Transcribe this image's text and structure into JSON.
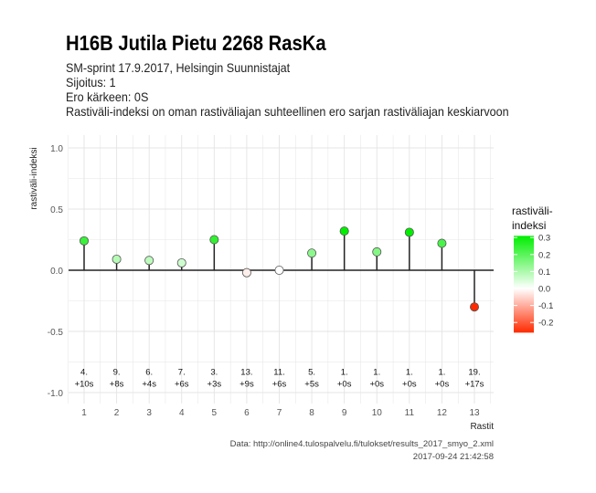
{
  "title": "H16B Jutila Pietu 2268 RasKa",
  "subtitle_lines": [
    "SM-sprint 17.9.2017, Helsingin Suunnistajat",
    "Sijoitus: 1",
    "Ero kärkeen: 0S",
    "Rastiväli-indeksi on oman rastiväliajan suhteellinen ero sarjan rastiväliajan keskiarvoon"
  ],
  "caption_lines": [
    "Data: http://online4.tulospalvelu.fi/tulokset/results_2017_smyo_2.xml",
    "2017-09-24 21:42:58"
  ],
  "chart_data": {
    "type": "lollipop",
    "xlabel": "Rastit",
    "ylabel": "rastiväli-indeksi",
    "ylim": [
      -1.05,
      1.1
    ],
    "yticks": [
      -1.0,
      -0.5,
      0.0,
      0.5,
      1.0
    ],
    "ytick_labels": [
      "-1.0",
      "-0.5",
      "0.0",
      "0.5",
      "1.0"
    ],
    "x": [
      1,
      2,
      3,
      4,
      5,
      6,
      7,
      8,
      9,
      10,
      11,
      12,
      13
    ],
    "values": [
      0.24,
      0.09,
      0.08,
      0.06,
      0.25,
      -0.02,
      0.0,
      0.14,
      0.32,
      0.15,
      0.31,
      0.22,
      -0.3
    ],
    "annotations": [
      [
        "4.",
        "+10s"
      ],
      [
        "9.",
        "+8s"
      ],
      [
        "6.",
        "+4s"
      ],
      [
        "7.",
        "+6s"
      ],
      [
        "3.",
        "+3s"
      ],
      [
        "13.",
        "+9s"
      ],
      [
        "11.",
        "+6s"
      ],
      [
        "5.",
        "+5s"
      ],
      [
        "1.",
        "+0s"
      ],
      [
        "1.",
        "+0s"
      ],
      [
        "1.",
        "+0s"
      ],
      [
        "1.",
        "+0s"
      ],
      [
        "19.",
        "+17s"
      ]
    ],
    "annotation_y": -0.9,
    "legend": {
      "title": [
        "rastiväli-",
        "indeksi"
      ],
      "ticks": [
        0.3,
        0.2,
        0.1,
        0.0,
        -0.1,
        -0.2
      ],
      "tick_labels": [
        "0.3",
        "0.2",
        "0.1",
        "0.0",
        "-0.1",
        "-0.2"
      ],
      "range": [
        -0.26,
        0.31
      ],
      "placement": "right"
    },
    "colors": {
      "low": "#ff2a00",
      "mid": "#ffffff",
      "high": "#00ee00"
    }
  }
}
